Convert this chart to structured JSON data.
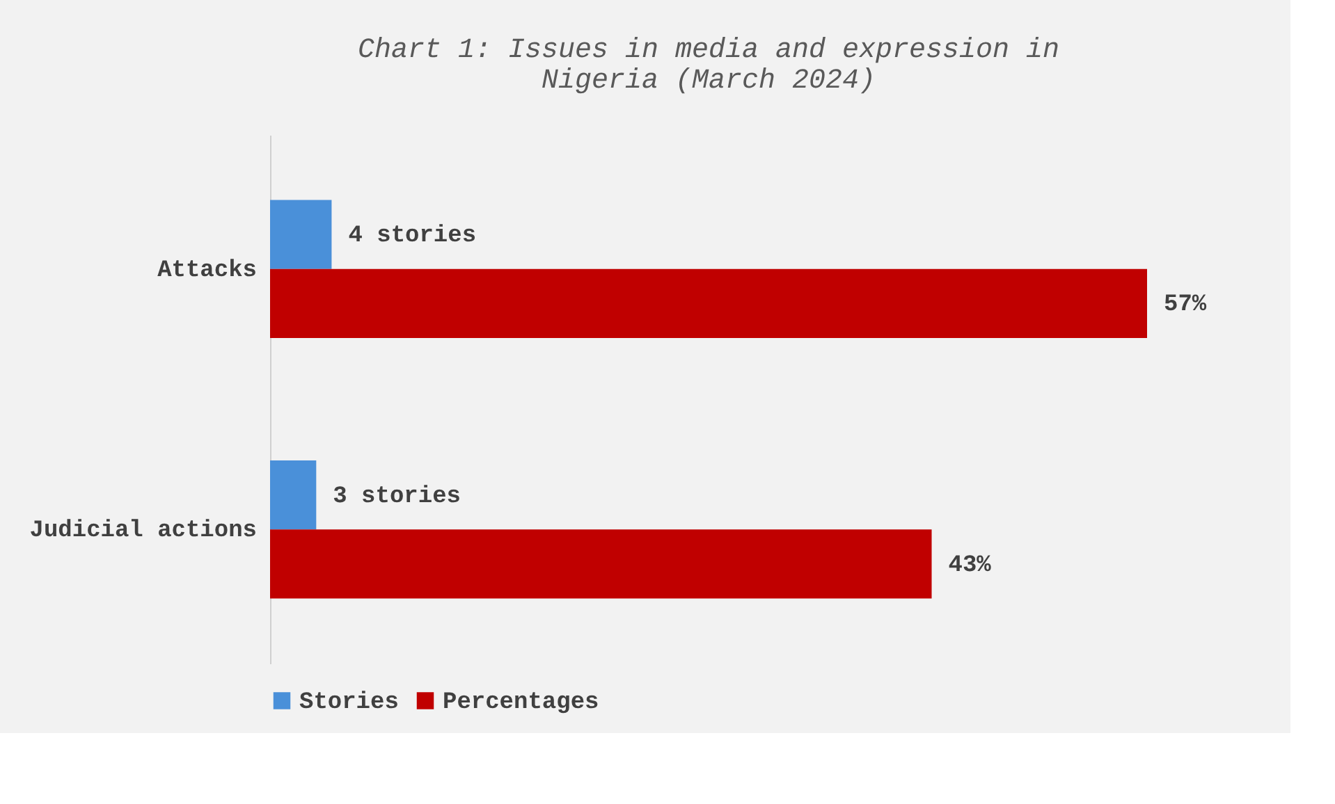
{
  "chart_data": {
    "type": "bar",
    "orientation": "horizontal",
    "title": "Chart 1: Issues in media and expression in Nigeria (March 2024)",
    "categories": [
      "Attacks",
      "Judicial actions"
    ],
    "series": [
      {
        "name": "Stories",
        "color": "#4a90d9",
        "values": [
          4,
          3
        ],
        "value_labels": [
          "4 stories",
          "3 stories"
        ]
      },
      {
        "name": "Percentages",
        "color": "#c00000",
        "values": [
          57,
          43
        ],
        "value_labels": [
          "57%",
          "43%"
        ]
      }
    ],
    "legend": "bottom",
    "grid": false
  }
}
